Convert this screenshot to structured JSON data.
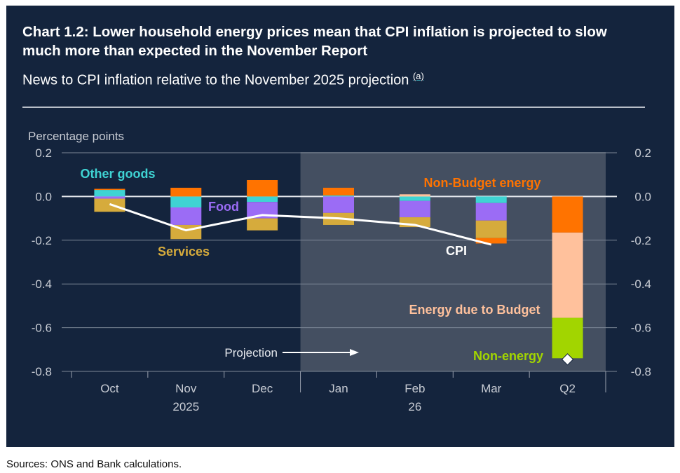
{
  "title": "Chart 1.2: Lower household energy prices mean that CPI inflation is projected to slow much more than expected in the November Report",
  "subtitle": "News to CPI inflation relative to the November 2025 projection",
  "footnote_marker": "(a)",
  "sources": "Sources: ONS and Bank calculations.",
  "colors": {
    "background": "#14243d",
    "projection_shading": "#444f61",
    "other_goods": "#3fd3d3",
    "food": "#9b6cf5",
    "services": "#d6ab3c",
    "non_budget_energy": "#ff7300",
    "energy_due_to_budget": "#ffc19c",
    "non_energy": "#a2d500",
    "cpi_line": "#ffffff"
  },
  "chart_data": {
    "type": "bar",
    "stacked": true,
    "title": "Chart 1.2: Lower household energy prices mean that CPI inflation is projected to slow much more than expected in the November Report",
    "subtitle": "News to CPI inflation relative to the November 2025 projection",
    "ylabel": "Percentage points",
    "xlabel": "",
    "ylim": [
      -0.8,
      0.2
    ],
    "yticks": [
      "0.2",
      "0.0",
      "-0.2",
      "-0.4",
      "-0.6",
      "-0.8"
    ],
    "ytick_values": [
      0.2,
      0.0,
      -0.2,
      -0.4,
      -0.6,
      -0.8
    ],
    "categories": [
      "Oct",
      "Nov",
      "Dec",
      "Jan",
      "Feb",
      "Mar",
      "Q2"
    ],
    "year_labels": [
      {
        "label": "2025",
        "under": "Nov"
      },
      {
        "label": "26",
        "under": "Feb"
      }
    ],
    "projection_start": "Jan",
    "projection_label": "Projection",
    "grid": true,
    "series": [
      {
        "name": "Other goods",
        "key": "other_goods",
        "values": [
          0.03,
          -0.05,
          -0.025,
          0.005,
          -0.02,
          -0.03,
          0
        ]
      },
      {
        "name": "Food",
        "key": "food",
        "values": [
          -0.01,
          -0.08,
          -0.075,
          -0.075,
          -0.075,
          -0.08,
          0
        ]
      },
      {
        "name": "Services",
        "key": "services",
        "values": [
          -0.06,
          -0.065,
          -0.055,
          -0.055,
          -0.045,
          -0.08,
          0
        ]
      },
      {
        "name": "Non-Budget energy",
        "key": "non_budget_energy",
        "values": [
          0.005,
          0.04,
          0.075,
          0.035,
          0,
          -0.025,
          -0.165
        ]
      },
      {
        "name": "Energy due to Budget",
        "key": "energy_due_to_budget",
        "values": [
          0,
          0,
          0,
          0,
          0.01,
          0,
          -0.39
        ]
      },
      {
        "name": "Non-energy",
        "key": "non_energy",
        "values": [
          0,
          0,
          0,
          0,
          0,
          0,
          -0.185
        ]
      }
    ],
    "cpi_line": {
      "name": "CPI",
      "values": [
        -0.035,
        -0.155,
        -0.085,
        -0.1,
        -0.13,
        -0.22,
        null
      ]
    },
    "cpi_marker": {
      "category": "Q2",
      "value": -0.745,
      "shape": "diamond"
    },
    "annotations": [
      {
        "text": "Other goods",
        "series": "other_goods"
      },
      {
        "text": "Food",
        "series": "food"
      },
      {
        "text": "Services",
        "series": "services"
      },
      {
        "text": "Non-Budget energy",
        "series": "non_budget_energy"
      },
      {
        "text": "Energy due to Budget",
        "series": "energy_due_to_budget"
      },
      {
        "text": "Non-energy",
        "series": "non_energy"
      },
      {
        "text": "CPI",
        "series": "cpi"
      }
    ]
  }
}
